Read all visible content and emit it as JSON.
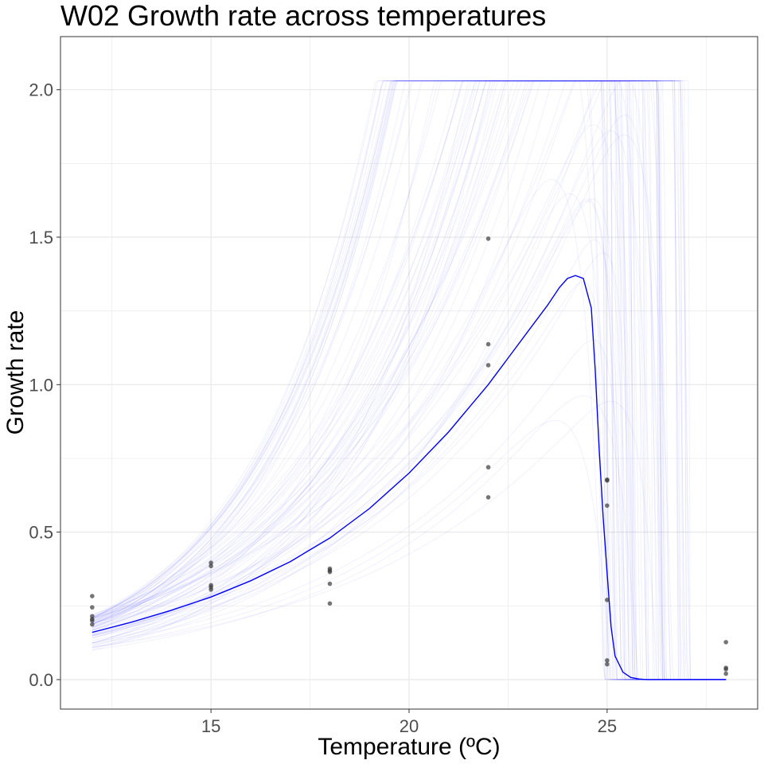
{
  "chart_data": {
    "type": "scatter",
    "title": "W02 Growth rate across temperatures",
    "xlabel": "Temperature (ºC)",
    "ylabel": "Growth rate",
    "xlim": [
      11.2,
      28.8
    ],
    "ylim": [
      -0.1,
      2.18
    ],
    "x_ticks": [
      15,
      20,
      25
    ],
    "x_tick_labels": [
      "15",
      "20",
      "25"
    ],
    "y_ticks": [
      0.0,
      0.5,
      1.0,
      1.5,
      2.0
    ],
    "y_tick_labels": [
      "0.0",
      "0.5",
      "1.0",
      "1.5",
      "2.0"
    ],
    "grid": true,
    "legend": "none",
    "colors": {
      "points": "#3a3a3a",
      "fit_line": "#0000ff",
      "bootstrap_lines": "#3333ff",
      "panel_border": "#333333",
      "grid": "#ebebeb"
    },
    "points": [
      {
        "x": 12,
        "y": 0.283
      },
      {
        "x": 12,
        "y": 0.245
      },
      {
        "x": 12,
        "y": 0.215
      },
      {
        "x": 12,
        "y": 0.205
      },
      {
        "x": 12,
        "y": 0.2
      },
      {
        "x": 12,
        "y": 0.187
      },
      {
        "x": 15,
        "y": 0.396
      },
      {
        "x": 15,
        "y": 0.385
      },
      {
        "x": 15,
        "y": 0.32
      },
      {
        "x": 15,
        "y": 0.313
      },
      {
        "x": 15,
        "y": 0.305
      },
      {
        "x": 18,
        "y": 0.376
      },
      {
        "x": 18,
        "y": 0.37
      },
      {
        "x": 18,
        "y": 0.365
      },
      {
        "x": 18,
        "y": 0.325
      },
      {
        "x": 18,
        "y": 0.258
      },
      {
        "x": 22,
        "y": 1.495
      },
      {
        "x": 22,
        "y": 1.137
      },
      {
        "x": 22,
        "y": 1.066
      },
      {
        "x": 22,
        "y": 0.72
      },
      {
        "x": 22,
        "y": 0.618
      },
      {
        "x": 25,
        "y": 0.678
      },
      {
        "x": 25,
        "y": 0.675
      },
      {
        "x": 25,
        "y": 0.59
      },
      {
        "x": 25,
        "y": 0.27
      },
      {
        "x": 25,
        "y": 0.065
      },
      {
        "x": 25,
        "y": 0.052
      },
      {
        "x": 28,
        "y": 0.127
      },
      {
        "x": 28,
        "y": 0.04
      },
      {
        "x": 28,
        "y": 0.035
      },
      {
        "x": 28,
        "y": 0.02
      }
    ],
    "fit_line": {
      "x": [
        12.0,
        13.0,
        14.0,
        15.0,
        16.0,
        17.0,
        18.0,
        19.0,
        20.0,
        21.0,
        22.0,
        23.0,
        23.5,
        23.8,
        24.0,
        24.2,
        24.4,
        24.6,
        24.7,
        24.8,
        24.9,
        25.0,
        25.1,
        25.2,
        25.4,
        25.6,
        25.8,
        26.0,
        26.5,
        27.0,
        28.0
      ],
      "y": [
        0.16,
        0.195,
        0.235,
        0.28,
        0.335,
        0.4,
        0.48,
        0.58,
        0.7,
        0.84,
        1.0,
        1.18,
        1.27,
        1.33,
        1.36,
        1.37,
        1.36,
        1.26,
        1.05,
        0.78,
        0.55,
        0.36,
        0.18,
        0.08,
        0.025,
        0.007,
        0.002,
        0.0,
        0.0,
        0.0,
        0.0
      ]
    },
    "bootstrap": {
      "count": 80,
      "peak_range": [
        0.6,
        2.03
      ],
      "low_end_range": [
        0.1,
        0.22
      ]
    }
  }
}
